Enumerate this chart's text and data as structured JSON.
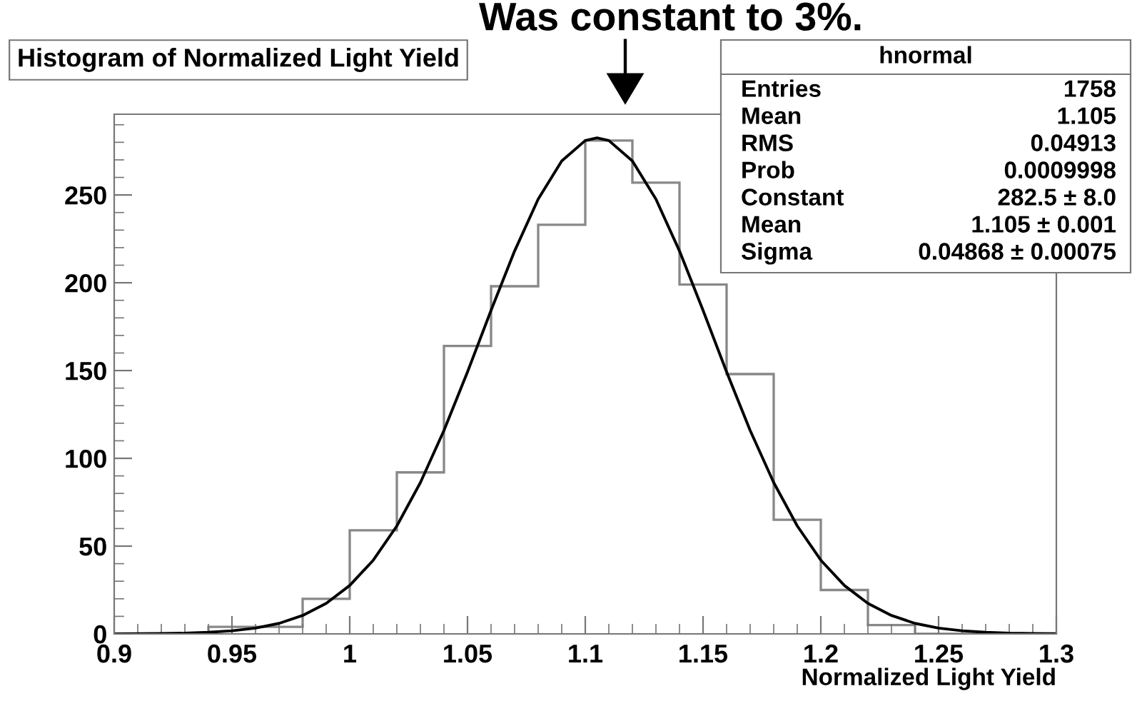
{
  "chart_data": {
    "type": "histogram",
    "title": "Histogram of Normalized Light Yield",
    "xlabel": "Normalized Light Yield",
    "annotations": [
      "Was constant to 3%.",
      "hnormal",
      "Entries",
      "1758",
      "Mean",
      "1.105",
      "RMS",
      "0.04913",
      "Prob",
      "0.0009998",
      "Constant",
      "282.5 ± 8.0",
      "Mean",
      "1.105 ± 0.001",
      "Sigma",
      "0.04868 ± 0.00075"
    ],
    "series": [
      {
        "color": "#888888",
        "bins": [
          0.9,
          0.92,
          0.94,
          0.96,
          0.98,
          1.0,
          1.02,
          1.04,
          1.06,
          1.08,
          1.1,
          1.12,
          1.14,
          1.16,
          1.18,
          1.2,
          1.22,
          1.24,
          1.26,
          1.28,
          1.3
        ],
        "values": [
          0,
          0,
          4,
          4,
          20,
          59,
          92,
          164,
          198,
          233,
          281,
          257,
          199,
          148,
          65,
          25,
          5,
          0,
          0,
          0
        ]
      },
      {
        "type": "line",
        "color": "#000000",
        "x": [
          0.9,
          0.91,
          0.92,
          0.93,
          0.94,
          0.95,
          0.96,
          0.97,
          0.98,
          0.99,
          1.0,
          1.01,
          1.02,
          1.03,
          1.04,
          1.05,
          1.06,
          1.07,
          1.08,
          1.09,
          1.1,
          1.105,
          1.11,
          1.12,
          1.13,
          1.14,
          1.15,
          1.16,
          1.17,
          1.18,
          1.19,
          1.2,
          1.21,
          1.22,
          1.23,
          1.24,
          1.25,
          1.26,
          1.27,
          1.28,
          1.29,
          1.3
        ],
        "values": [
          0,
          0.1,
          0.2,
          0.4,
          0.9,
          1.8,
          3.3,
          6.0,
          10.5,
          17.4,
          27.6,
          42.0,
          61.5,
          86.2,
          115.9,
          149.2,
          184.3,
          218.1,
          247.6,
          269.4,
          281.0,
          282.5,
          281.0,
          269.4,
          247.6,
          218.1,
          184.3,
          149.2,
          115.9,
          86.2,
          61.5,
          42.0,
          27.6,
          17.4,
          10.5,
          6.0,
          3.3,
          1.8,
          0.9,
          0.4,
          0.2,
          0.1
        ]
      }
    ],
    "xlim": [
      0.9,
      1.3
    ],
    "xticks": [
      0.9,
      0.95,
      1,
      1.05,
      1.1,
      1.15,
      1.2,
      1.25,
      1.3
    ],
    "ylim": [
      0,
      296
    ],
    "yticks": [
      0,
      50,
      100,
      150,
      200,
      250
    ]
  }
}
